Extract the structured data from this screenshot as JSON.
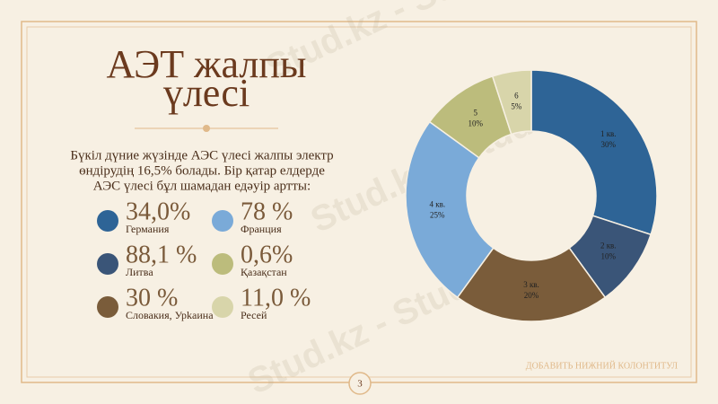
{
  "slide": {
    "title_lines": [
      "АЭТ жалпы",
      "үлесі"
    ],
    "paragraph_lines": [
      "Бүкіл дүние жүзінде АЭС үлесі жалпы электр",
      "өндірудің 16,5% болады. Бір қатар елдерде",
      "АЭС үлесі бұл шамадан едәуір артты:"
    ],
    "stats": [
      {
        "value": "34,0%",
        "label": "Германия",
        "color": "#2e6496"
      },
      {
        "value": "78 %",
        "label": "Франция",
        "color": "#7aaad8"
      },
      {
        "value": "88,1 %",
        "label": "Литва",
        "color": "#3a5578"
      },
      {
        "value": "0,6%",
        "label": "Қазақстан",
        "color": "#bcbc7c"
      },
      {
        "value": "30 %",
        "label": "Словакия, Урkаина",
        "color": "#7a5c3a"
      },
      {
        "value": "11,0 %",
        "label": "Ресей",
        "color": "#d8d5aa"
      }
    ],
    "footer": "ДОБАВИТЬ НИЖНИЙ КОЛОНТИТУЛ",
    "page_number": "3",
    "watermark": "Stud.kz - Stud.kz"
  },
  "chart_data": {
    "type": "donut",
    "categories": [
      "1 кв.",
      "2 кв.",
      "3 кв.",
      "4 кв.",
      "5",
      "6"
    ],
    "values": [
      30,
      10,
      20,
      25,
      10,
      5
    ],
    "value_labels": [
      "30%",
      "10%",
      "20%",
      "25%",
      "10%",
      "5%"
    ],
    "colors": [
      "#2e6496",
      "#3a5578",
      "#7a5c3a",
      "#7aaad8",
      "#bcbc7c",
      "#d8d5aa"
    ]
  }
}
